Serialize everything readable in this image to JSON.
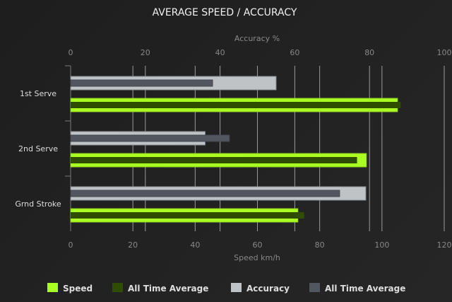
{
  "chart_data": {
    "type": "bar",
    "orientation": "horizontal",
    "title": "AVERAGE SPEED / ACCURACY",
    "categories": [
      "1st Serve",
      "2nd Serve",
      "Grnd Stroke"
    ],
    "x_bottom": {
      "label": "Speed km/h",
      "range": [
        0,
        120
      ],
      "ticks": [
        0,
        20,
        40,
        60,
        80,
        100,
        120
      ]
    },
    "x_top": {
      "label": "Accuracy %",
      "range": [
        0,
        100
      ],
      "ticks": [
        0,
        20,
        40,
        60,
        80,
        100
      ]
    },
    "grid": true,
    "legend_position": "bottom",
    "series": [
      {
        "name": "Speed",
        "axis": "bottom",
        "color": "#aaff22",
        "values": [
          105,
          95,
          73
        ]
      },
      {
        "name": "All Time Average",
        "axis": "bottom",
        "color": "#2f4d00",
        "values": [
          106,
          92,
          75
        ]
      },
      {
        "name": "Accuracy",
        "axis": "top",
        "color": "#bfc3c6",
        "values": [
          55,
          36,
          79
        ]
      },
      {
        "name": "All Time Average",
        "axis": "top",
        "color": "#52575f",
        "values": [
          38,
          42.5,
          72
        ]
      }
    ]
  }
}
